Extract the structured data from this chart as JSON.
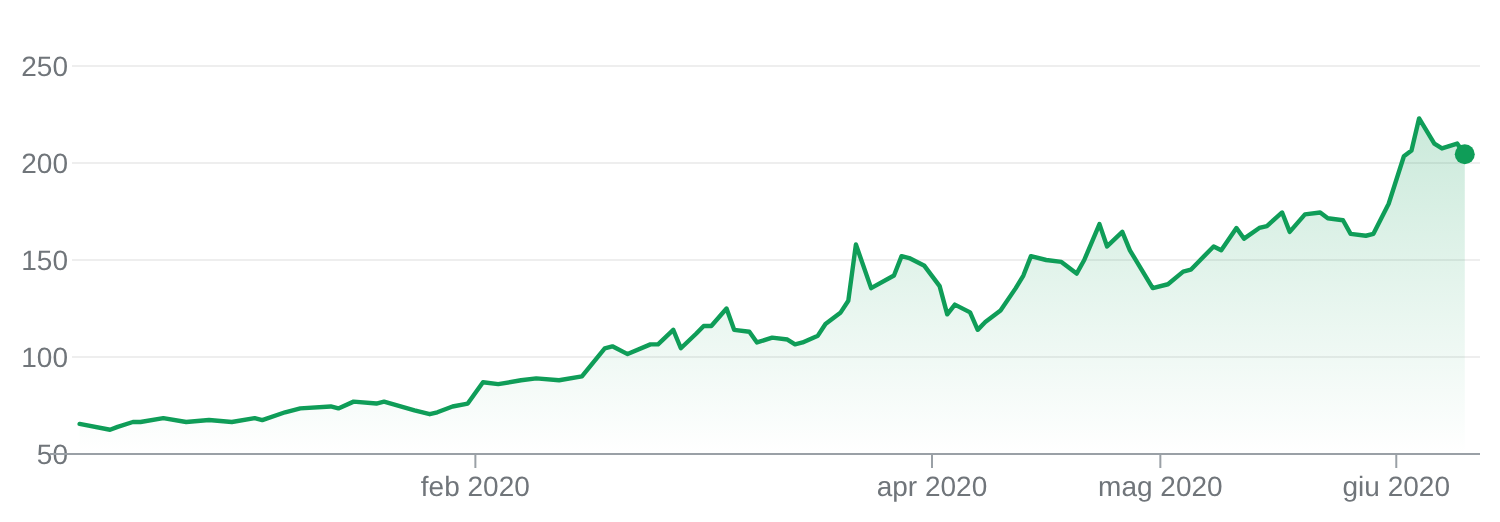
{
  "chart_data": {
    "type": "area",
    "x": [
      "2019-12-11",
      "2019-12-15",
      "2019-12-16",
      "2019-12-18",
      "2019-12-19",
      "2019-12-22",
      "2019-12-25",
      "2019-12-28",
      "2019-12-31",
      "2020-01-03",
      "2020-01-04",
      "2020-01-07",
      "2020-01-09",
      "2020-01-13",
      "2020-01-14",
      "2020-01-16",
      "2020-01-19",
      "2020-01-20",
      "2020-01-24",
      "2020-01-26",
      "2020-01-27",
      "2020-01-29",
      "2020-01-31",
      "2020-02-02",
      "2020-02-04",
      "2020-02-07",
      "2020-02-09",
      "2020-02-12",
      "2020-02-15",
      "2020-02-18",
      "2020-02-19",
      "2020-02-21",
      "2020-02-24",
      "2020-02-25",
      "2020-02-27",
      "2020-02-28",
      "2020-03-01",
      "2020-03-02",
      "2020-03-03",
      "2020-03-05",
      "2020-03-06",
      "2020-03-08",
      "2020-03-09",
      "2020-03-11",
      "2020-03-13",
      "2020-03-14",
      "2020-03-15",
      "2020-03-17",
      "2020-03-18",
      "2020-03-20",
      "2020-03-21",
      "2020-03-22",
      "2020-03-24",
      "2020-03-27",
      "2020-03-28",
      "2020-03-29",
      "2020-03-31",
      "2020-04-02",
      "2020-04-03",
      "2020-04-04",
      "2020-04-06",
      "2020-04-07",
      "2020-04-08",
      "2020-04-10",
      "2020-04-12",
      "2020-04-13",
      "2020-04-14",
      "2020-04-16",
      "2020-04-18",
      "2020-04-20",
      "2020-04-21",
      "2020-04-23",
      "2020-04-24",
      "2020-04-26",
      "2020-04-27",
      "2020-04-30",
      "2020-05-02",
      "2020-05-04",
      "2020-05-05",
      "2020-05-06",
      "2020-05-08",
      "2020-05-09",
      "2020-05-11",
      "2020-05-12",
      "2020-05-14",
      "2020-05-15",
      "2020-05-17",
      "2020-05-18",
      "2020-05-20",
      "2020-05-22",
      "2020-05-23",
      "2020-05-25",
      "2020-05-26",
      "2020-05-28",
      "2020-05-29",
      "2020-05-31",
      "2020-06-02",
      "2020-06-03",
      "2020-06-04",
      "2020-06-06",
      "2020-06-07",
      "2020-06-09",
      "2020-06-10"
    ],
    "series": [
      {
        "color": "#0f9d58",
        "values": [
          65.5,
          62.5,
          64,
          66.5,
          66.5,
          68.5,
          66.5,
          67.5,
          66.5,
          68.5,
          67.5,
          71.5,
          73.5,
          74.5,
          73.5,
          77,
          76,
          77,
          72.5,
          70.5,
          71.5,
          74.5,
          76,
          87,
          86,
          88,
          89,
          88,
          90,
          104.5,
          105.5,
          101.5,
          106.5,
          106.5,
          114,
          104.5,
          112,
          116,
          116,
          125,
          114,
          113,
          107.5,
          110,
          109,
          106.5,
          107.5,
          111,
          117,
          123,
          129,
          158,
          135.5,
          142,
          152,
          151,
          147,
          136.5,
          122,
          127,
          123,
          114,
          118,
          124,
          135.5,
          142,
          152,
          150,
          149,
          143,
          150,
          168.5,
          157,
          164.5,
          155,
          135.5,
          137.5,
          144,
          145,
          149,
          157,
          155,
          166.5,
          161,
          166.5,
          167.5,
          174.5,
          164.5,
          173.5,
          174.5,
          171.5,
          170.5,
          163.5,
          162.5,
          163.5,
          179,
          203.5,
          206.5,
          223,
          210,
          207.5,
          210,
          204.5
        ]
      }
    ],
    "xlim": [
      "2019-12-10",
      "2020-06-12"
    ],
    "xticks": [
      {
        "value": "2020-02-01",
        "label": "feb 2020"
      },
      {
        "value": "2020-04-01",
        "label": "apr 2020"
      },
      {
        "value": "2020-05-01",
        "label": "mag 2020"
      },
      {
        "value": "2020-06-01",
        "label": "giu 2020"
      }
    ],
    "ylim": [
      50,
      250
    ],
    "yticks": [
      50,
      100,
      150,
      200,
      250
    ],
    "grid": "y"
  }
}
